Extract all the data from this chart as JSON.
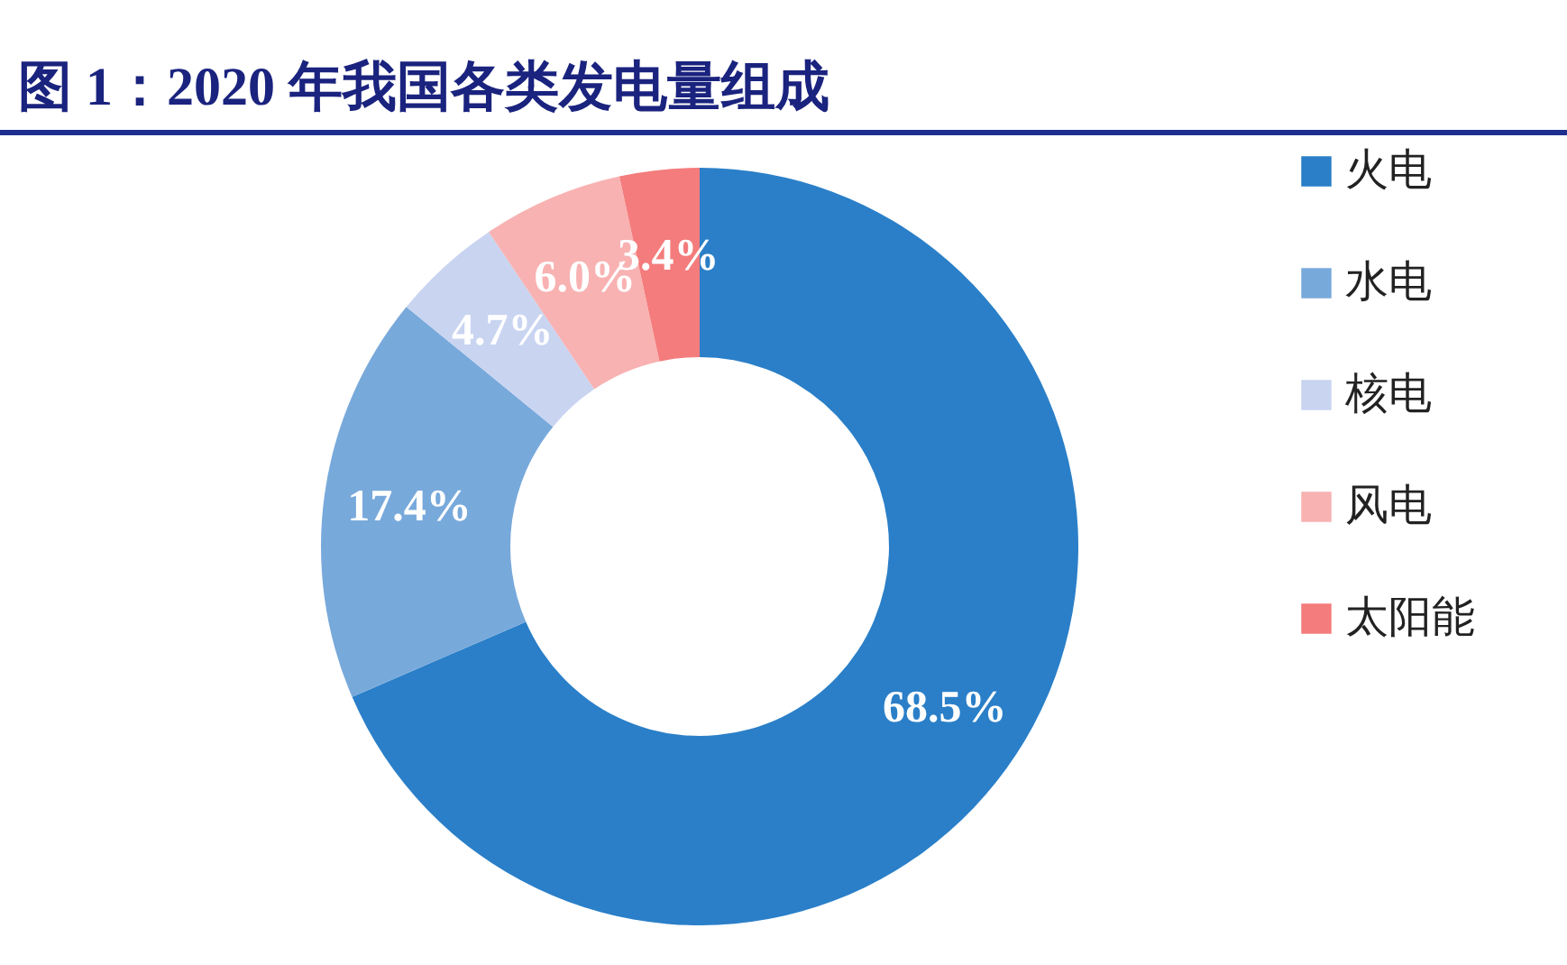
{
  "chart_data": {
    "type": "donut",
    "title": "图 1：2020 年我国各类发电量组成",
    "categories": [
      "火电",
      "水电",
      "核电",
      "风电",
      "太阳能"
    ],
    "values": [
      68.5,
      17.4,
      4.7,
      6.0,
      3.4
    ],
    "value_labels": [
      "68.5%",
      "17.4%",
      "4.7%",
      "6.0%",
      "3.4%"
    ],
    "colors": [
      "#2a7fc8",
      "#78a9db",
      "#c9d4f1",
      "#f8b2b2",
      "#f47c7c"
    ],
    "legend": "right"
  }
}
